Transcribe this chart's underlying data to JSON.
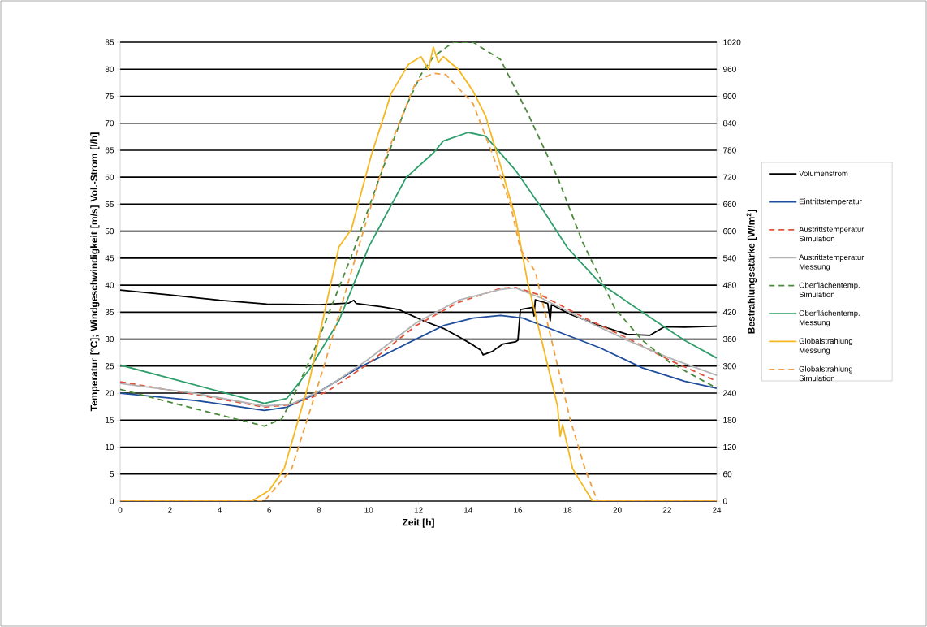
{
  "chart_data": {
    "type": "line",
    "xlabel": "Zeit [h]",
    "ylabel": "Temperatur [°C]; Windgeschwindigkeit [m/s] Vol.-Strom [l/h]",
    "y2label": "Bestrahlungsstärke [W/m$^{2}$]",
    "xlim": [
      0,
      24
    ],
    "xticks": [
      0,
      2,
      4,
      6,
      8,
      10,
      12,
      14,
      16,
      18,
      20,
      22,
      24
    ],
    "ylim": [
      0,
      85
    ],
    "yticks": [
      0,
      5,
      10,
      15,
      20,
      25,
      30,
      35,
      40,
      45,
      50,
      55,
      60,
      65,
      70,
      75,
      80,
      85
    ],
    "y2lim": [
      0,
      1020
    ],
    "y2ticks": [
      0,
      60,
      120,
      180,
      240,
      300,
      360,
      420,
      480,
      540,
      600,
      660,
      720,
      780,
      840,
      900,
      960,
      1020
    ],
    "grid": "y",
    "legend": "right",
    "marker": "none",
    "series": [
      {
        "name": "Volumenstrom",
        "color": "#000000",
        "line_style": "solid",
        "x": [
          0,
          2,
          4,
          5.9,
          8,
          9.2,
          9.4,
          9.5,
          10.5,
          11.2,
          12.2,
          13.0,
          13.6,
          14.2,
          14.5,
          14.6,
          14.96,
          15.4,
          15.9,
          16.0,
          16.1,
          16.6,
          16.65,
          16.7,
          17.2,
          17.3,
          17.35,
          18.1,
          19.3,
          20.4,
          21.3,
          21.9,
          22.7,
          24
        ],
        "values": [
          39.1,
          38.2,
          37.2,
          36.5,
          36.4,
          36.7,
          37.2,
          36.6,
          36.0,
          35.5,
          33.4,
          32.0,
          30.5,
          28.9,
          28.0,
          27.1,
          27.7,
          29.1,
          29.5,
          29.8,
          35.5,
          35.9,
          34.3,
          37.3,
          36.6,
          33.4,
          36.4,
          34.6,
          32.5,
          30.9,
          30.7,
          32.3,
          32.2,
          32.4
        ]
      },
      {
        "name": "Eintrittstemperatur",
        "color": "#1f4e9c",
        "line_style": "solid",
        "x": [
          0,
          3.1,
          5.8,
          6.7,
          7.8,
          9.6,
          11.9,
          13.0,
          14.2,
          15.3,
          16.2,
          17.6,
          19.3,
          21.0,
          22.7,
          24
        ],
        "values": [
          20.0,
          18.6,
          16.8,
          17.4,
          19.7,
          24.7,
          30.0,
          32.5,
          33.9,
          34.4,
          33.9,
          31.4,
          28.4,
          24.7,
          22.2,
          20.9
        ]
      },
      {
        "name": "Austrittstemperatur Simulation",
        "color": "#e0533a",
        "line_style": "dashed",
        "x": [
          0,
          3.1,
          5.8,
          6.9,
          8.3,
          9.9,
          11.9,
          13.6,
          15.3,
          15.9,
          17.0,
          18.7,
          20.4,
          22.1,
          24
        ],
        "values": [
          22.1,
          19.7,
          17.4,
          17.9,
          20.2,
          25.2,
          32.5,
          36.8,
          39.4,
          39.6,
          38.0,
          33.9,
          30.2,
          26.1,
          22.2
        ]
      },
      {
        "name": "Austrittstemperatur Messung",
        "color": "#b4b4b4",
        "line_style": "solid",
        "x": [
          0,
          3.1,
          5.8,
          6.9,
          8.3,
          9.9,
          11.9,
          13.6,
          15.3,
          15.9,
          17.0,
          18.7,
          20.4,
          22.1,
          24
        ],
        "values": [
          21.8,
          19.9,
          17.6,
          18.0,
          21.0,
          26.0,
          33.0,
          37.2,
          39.2,
          39.5,
          37.5,
          33.5,
          29.8,
          26.5,
          23.3
        ]
      },
      {
        "name": "Oberflächentemp. Simulation",
        "color": "#4a8a3a",
        "line_style": "dashed",
        "x": [
          0,
          3.1,
          5.8,
          6.5,
          7.0,
          7.8,
          9.4,
          10.4,
          11.5,
          12.1,
          12.6,
          13.4,
          14.2,
          15.3,
          16.4,
          17.6,
          18.6,
          19.9,
          21.0,
          22.1,
          24
        ],
        "values": [
          20.7,
          17.0,
          13.9,
          15.2,
          19.7,
          27.9,
          46.5,
          59.5,
          73.1,
          79.0,
          82.3,
          85,
          85,
          81.8,
          71.8,
          59.9,
          48.0,
          35.7,
          29.8,
          25.7,
          20.9
        ]
      },
      {
        "name": "Oberflächentemp. Messung",
        "color": "#2e9e6a",
        "line_style": "solid",
        "x": [
          0,
          5.8,
          6.7,
          7.6,
          8.8,
          10.0,
          11.5,
          12.6,
          13.0,
          14.0,
          14.7,
          15.9,
          17.0,
          18.0,
          19.3,
          21.0,
          22.7,
          24
        ],
        "values": [
          25.2,
          18.1,
          19.0,
          24.3,
          33.4,
          47.1,
          59.9,
          64.5,
          66.7,
          68.3,
          67.6,
          61.3,
          54.0,
          46.9,
          40.4,
          35.0,
          29.8,
          26.5
        ]
      },
      {
        "name": "Globalstrahlung Messung",
        "color": "#f5b820",
        "line_style": "solid",
        "axis": "y2",
        "x": [
          0,
          5.3,
          6.0,
          6.6,
          7.6,
          8.8,
          9.3,
          10.1,
          10.9,
          11.6,
          12.1,
          12.4,
          12.6,
          12.8,
          13.0,
          13.6,
          14.2,
          14.7,
          15.3,
          15.9,
          16.4,
          17.0,
          17.6,
          17.7,
          17.8,
          18.2,
          19.0,
          24
        ],
        "values": [
          0,
          0,
          24,
          72,
          264,
          565,
          604,
          768,
          906,
          971,
          988,
          960,
          1009,
          975,
          988,
          960,
          911,
          856,
          746,
          631,
          484,
          347,
          210,
          144,
          170,
          72,
          0,
          0
        ]
      },
      {
        "name": "Globalstrahlung Simulation",
        "color": "#f0a040",
        "line_style": "dashed",
        "axis": "y2",
        "x": [
          0,
          5.8,
          6.9,
          8.2,
          9.5,
          10.7,
          11.9,
          12.6,
          13.1,
          14.2,
          15.0,
          15.7,
          16.1,
          16.7,
          17.4,
          18.1,
          18.7,
          19.2,
          24
        ],
        "values": [
          0,
          0,
          72,
          300,
          548,
          768,
          932,
          951,
          948,
          883,
          768,
          659,
          560,
          510,
          347,
          182,
          72,
          0,
          0
        ]
      }
    ]
  }
}
